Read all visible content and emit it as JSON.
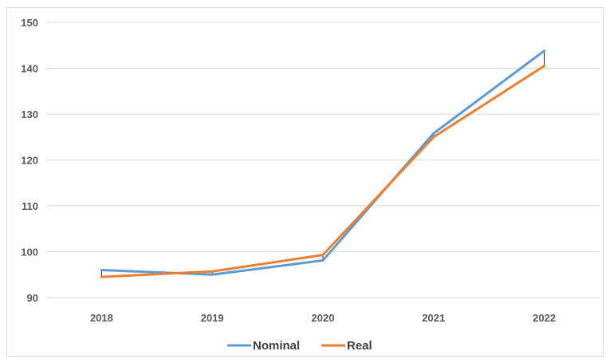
{
  "chart_data": {
    "type": "line",
    "title": "",
    "xlabel": "",
    "ylabel": "",
    "categories": [
      "2018",
      "2019",
      "2020",
      "2021",
      "2022"
    ],
    "ylim": [
      90,
      150
    ],
    "yticks": [
      90,
      100,
      110,
      120,
      130,
      140,
      150
    ],
    "grid": true,
    "legend_position": "bottom",
    "series": [
      {
        "name": "Nominal",
        "color": "#5B9BD5",
        "values": [
          96.0,
          95.0,
          98.1,
          125.8,
          143.8
        ]
      },
      {
        "name": "Real",
        "color": "#ED7D31",
        "values": [
          94.5,
          95.7,
          99.3,
          125.0,
          140.5
        ]
      }
    ]
  }
}
